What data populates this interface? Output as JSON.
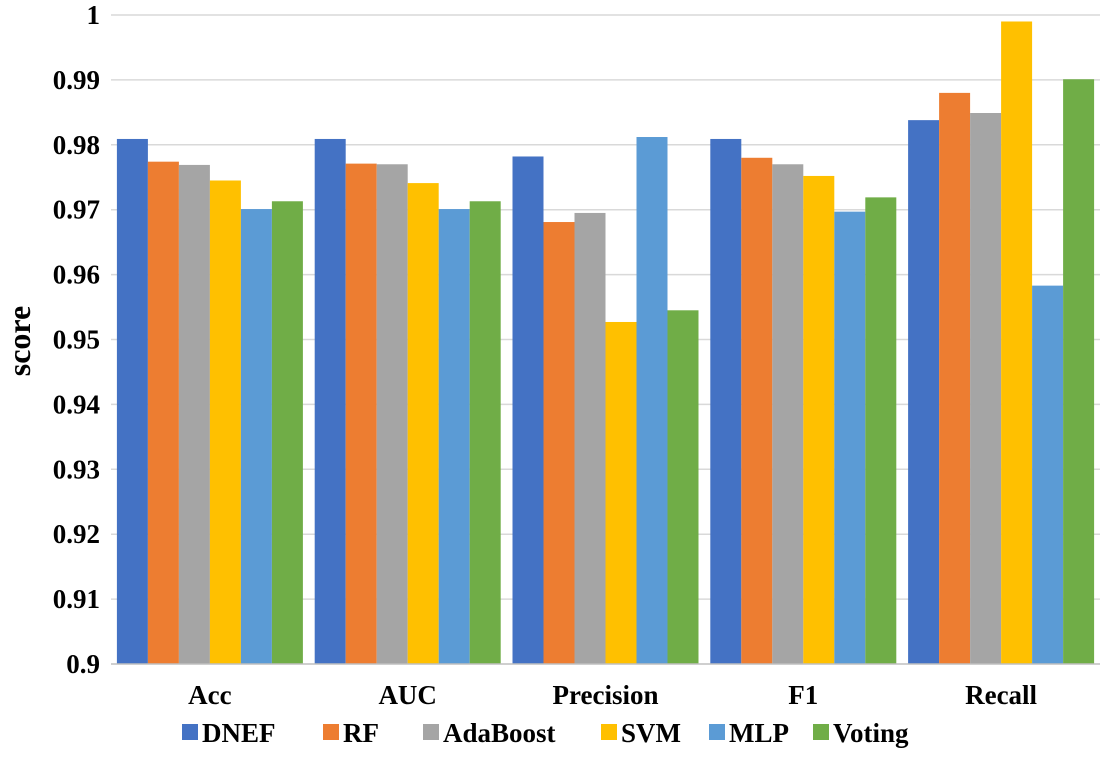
{
  "chart_data": {
    "type": "bar",
    "title": "",
    "xlabel": "",
    "ylabel": "score",
    "ylim": [
      0.9,
      1.0
    ],
    "yticks": [
      0.9,
      0.91,
      0.92,
      0.93,
      0.94,
      0.95,
      0.96,
      0.97,
      0.98,
      0.99,
      1.0
    ],
    "ytick_labels": [
      "0.9",
      "0.91",
      "0.92",
      "0.93",
      "0.94",
      "0.95",
      "0.96",
      "0.97",
      "0.98",
      "0.99",
      "1"
    ],
    "grid": true,
    "legend_position": "bottom",
    "categories": [
      "Acc",
      "AUC",
      "Precision",
      "F1",
      "Recall"
    ],
    "series": [
      {
        "name": "DNEF",
        "color": "#4472c4",
        "values": [
          0.9809,
          0.9809,
          0.9782,
          0.9809,
          0.9838
        ]
      },
      {
        "name": "RF",
        "color": "#ed7d31",
        "values": [
          0.9774,
          0.9771,
          0.9681,
          0.978,
          0.988
        ]
      },
      {
        "name": "AdaBoost",
        "color": "#a5a5a5",
        "values": [
          0.9769,
          0.977,
          0.9695,
          0.977,
          0.9849
        ]
      },
      {
        "name": "SVM",
        "color": "#ffc000",
        "values": [
          0.9745,
          0.9741,
          0.9527,
          0.9752,
          0.999
        ]
      },
      {
        "name": "MLP",
        "color": "#5b9bd5",
        "values": [
          0.9701,
          0.9701,
          0.9812,
          0.9697,
          0.9583
        ]
      },
      {
        "name": "Voting",
        "color": "#70ad47",
        "values": [
          0.9713,
          0.9713,
          0.9545,
          0.9719,
          0.9901
        ]
      }
    ]
  }
}
